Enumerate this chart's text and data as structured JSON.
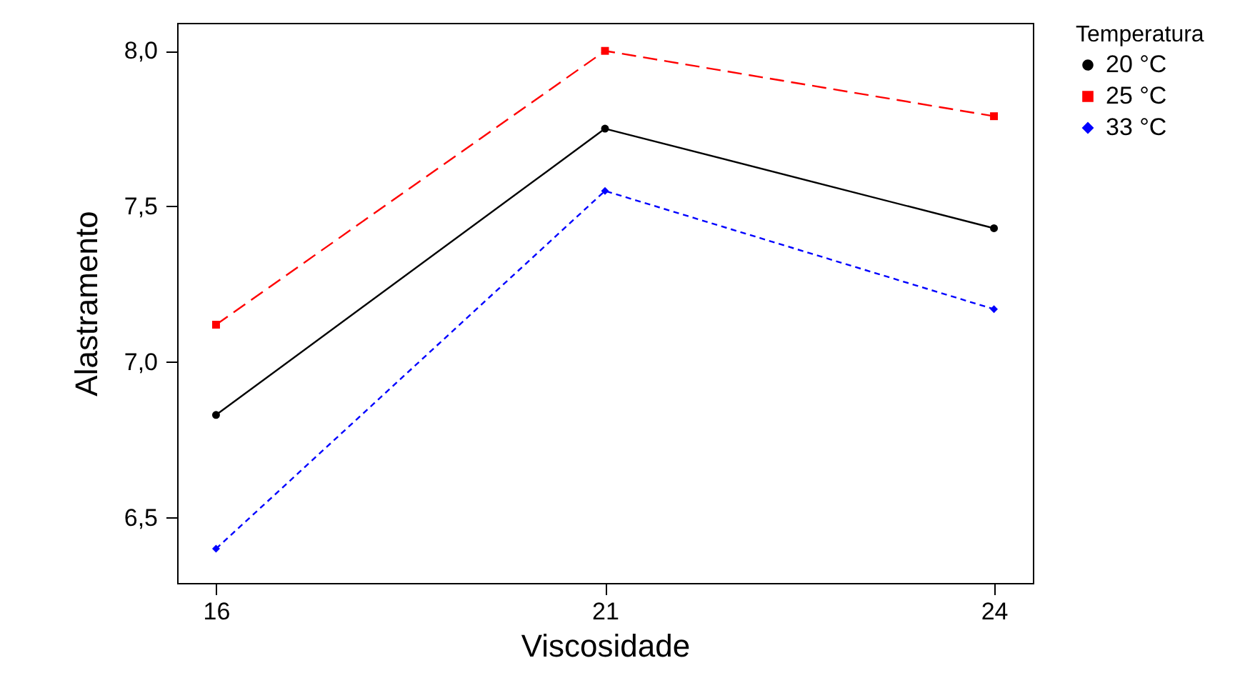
{
  "chart_data": {
    "type": "line",
    "xlabel": "Viscosidade",
    "ylabel": "Alastramento",
    "legend_title": "Temperatura",
    "categories": [
      "16",
      "21",
      "24"
    ],
    "series": [
      {
        "name": "20 °C",
        "color": "#000000",
        "values": [
          6.83,
          7.75,
          7.43
        ],
        "marker": "circle",
        "line_style": "solid"
      },
      {
        "name": "25 °C",
        "color": "#ff0000",
        "values": [
          7.12,
          8.0,
          7.79
        ],
        "marker": "square",
        "line_style": "dashed"
      },
      {
        "name": "33 °C",
        "color": "#0000ff",
        "values": [
          6.4,
          7.55,
          7.17
        ],
        "marker": "diamond",
        "line_style": "dotted"
      }
    ],
    "ylim": [
      6.29,
      8.09
    ],
    "yticks": [
      {
        "value": 6.5,
        "label": "6,5"
      },
      {
        "value": 7.0,
        "label": "7,0"
      },
      {
        "value": 7.5,
        "label": "7,5"
      },
      {
        "value": 8.0,
        "label": "8,0"
      }
    ],
    "grid": false,
    "legend": "right"
  }
}
